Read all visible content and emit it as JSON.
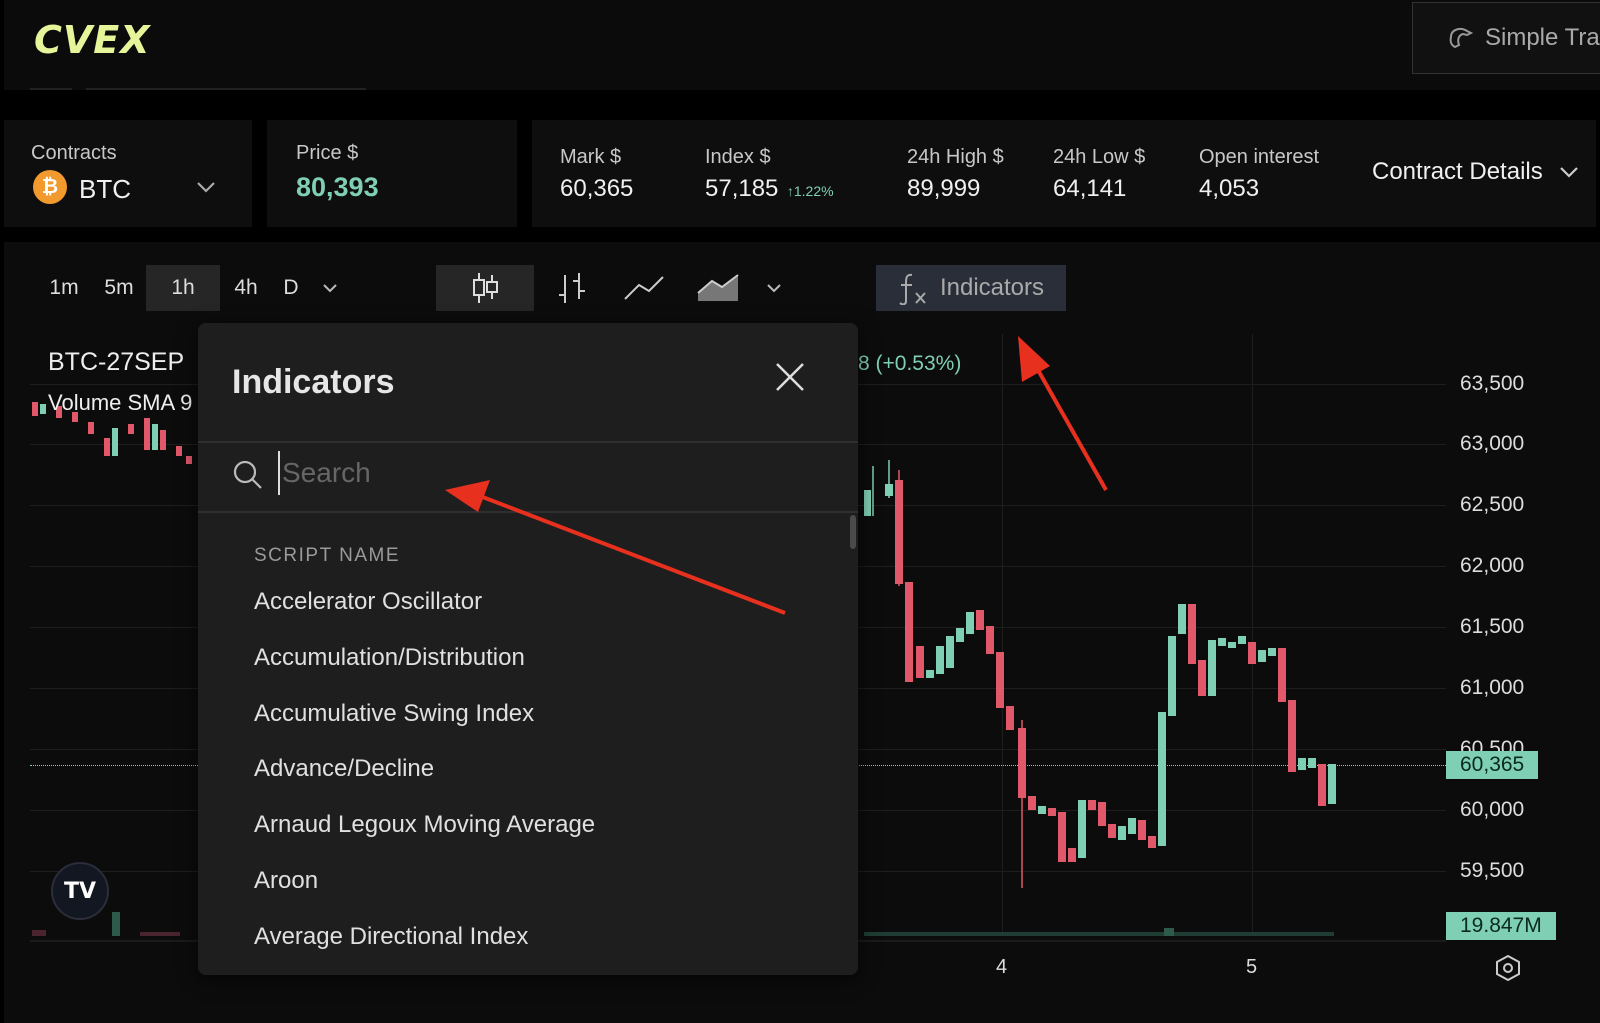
{
  "brand": {
    "logo": "CVEX",
    "simple_trade": "Simple Tra"
  },
  "contracts": {
    "label": "Contracts",
    "asset": "BTC"
  },
  "price": {
    "label": "Price $",
    "value": "80,393"
  },
  "stats": [
    {
      "label": "Mark $",
      "value": "60,365"
    },
    {
      "label": "Index $",
      "value": "57,185",
      "change": "↑1.22%"
    },
    {
      "label": "24h High $",
      "value": "89,999"
    },
    {
      "label": "24h Low $",
      "value": "64,141"
    },
    {
      "label": "Open interest",
      "value": "4,053"
    }
  ],
  "contract_details": "Contract Details",
  "timeframes": [
    "1m",
    "5m",
    "1h",
    "4h",
    "D"
  ],
  "active_timeframe": "1h",
  "indicators_button": "Indicators",
  "chart_legend": {
    "symbol": "BTC-27SEP",
    "volume": "Volume SMA 9",
    "change": "8 (+0.53%)"
  },
  "price_axis": [
    "63,500",
    "63,000",
    "62,500",
    "62,000",
    "61,500",
    "61,000",
    "60,500",
    "60,000",
    "59,500"
  ],
  "current_price_badge": "60,365",
  "volume_badge": "19.847M",
  "x_axis": [
    "4",
    "5"
  ],
  "tv_logo": "TV",
  "indicators_modal": {
    "title": "Indicators",
    "search_placeholder": "Search",
    "list_header": "SCRIPT NAME",
    "items": [
      "Accelerator Oscillator",
      "Accumulation/Distribution",
      "Accumulative Swing Index",
      "Advance/Decline",
      "Arnaud Legoux Moving Average",
      "Aroon",
      "Average Directional Index"
    ]
  },
  "colors": {
    "accent": "#7fcfb4",
    "up": "#7fcfb4",
    "down": "#e0586a",
    "annotation": "#e8301f"
  }
}
